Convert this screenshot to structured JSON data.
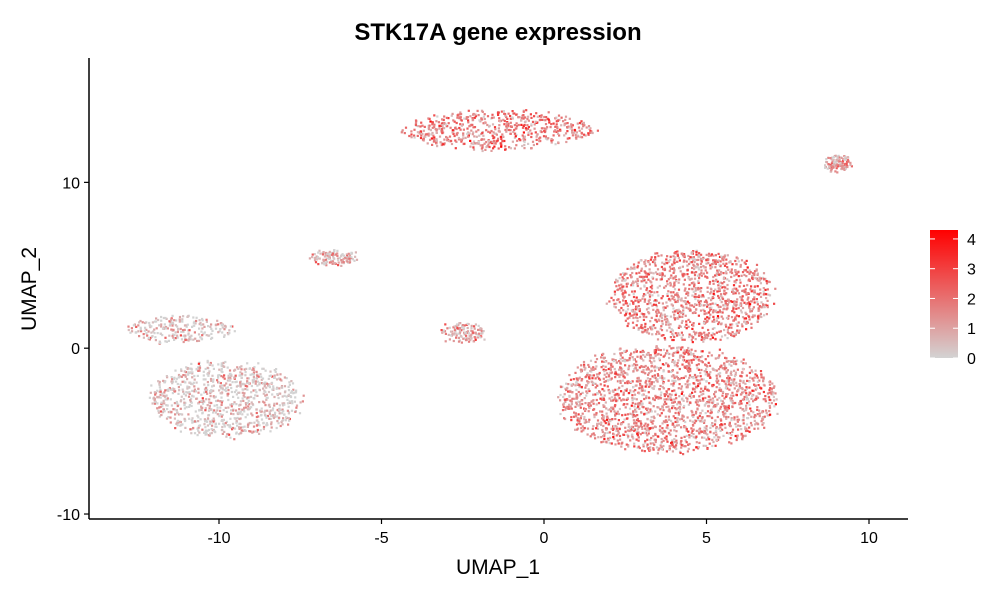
{
  "chart_data": {
    "type": "scatter",
    "title": "STK17A gene expression",
    "xlabel": "UMAP_1",
    "ylabel": "UMAP_2",
    "xlim": [
      -14,
      11.2
    ],
    "ylim": [
      -10.3,
      17.5
    ],
    "x_ticks": [
      -10,
      -5,
      0,
      5,
      10
    ],
    "y_ticks": [
      -10,
      0,
      10
    ],
    "grid": false,
    "legend": {
      "placement": "right",
      "type": "colorbar",
      "ticks": [
        0,
        1,
        2,
        3,
        4
      ],
      "min": 0,
      "max": 4.3,
      "color_low": "#d3d3d3",
      "color_high": "#ff0000"
    },
    "clusters": [
      {
        "center": [
          -1.5,
          13.2
        ],
        "spread": [
          2.6,
          1.0
        ],
        "mean_expression": 1.7,
        "note": "top cluster"
      },
      {
        "center": [
          3.8,
          -3.0
        ],
        "spread": [
          2.9,
          2.8
        ],
        "mean_expression": 1.5,
        "note": "large right cluster lower"
      },
      {
        "center": [
          4.5,
          3.2
        ],
        "spread": [
          2.2,
          2.4
        ],
        "mean_expression": 1.6,
        "note": "large right cluster upper"
      },
      {
        "center": [
          -11.2,
          1.2
        ],
        "spread": [
          1.4,
          0.7
        ],
        "mean_expression": 0.4,
        "note": "left cluster upper"
      },
      {
        "center": [
          -9.8,
          -3.0
        ],
        "spread": [
          2.0,
          2.0
        ],
        "mean_expression": 0.3,
        "note": "left cluster lower"
      },
      {
        "center": [
          9.0,
          11.2
        ],
        "spread": [
          0.35,
          0.35
        ],
        "mean_expression": 1.0,
        "note": "small top-right cluster"
      },
      {
        "center": [
          -6.5,
          5.5
        ],
        "spread": [
          0.6,
          0.4
        ],
        "mean_expression": 0.9,
        "note": "small streak"
      },
      {
        "center": [
          -2.5,
          1.0
        ],
        "spread": [
          0.6,
          0.5
        ],
        "mean_expression": 1.0,
        "note": "small streak"
      }
    ]
  }
}
